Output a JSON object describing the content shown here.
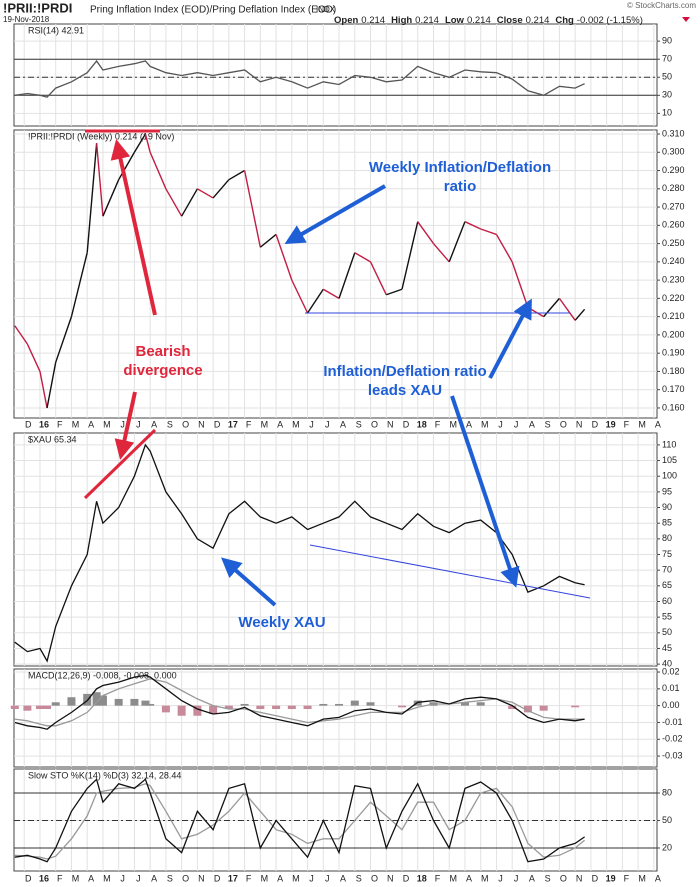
{
  "header": {
    "title": "!PRII:!PRDI",
    "subtitle": "Pring Inflation Index (EOD)/Pring Deflation Index (EOD)",
    "exchange": "INDX",
    "date": "19-Nov-2018",
    "credit": "© StockCharts.com",
    "quote": [
      {
        "label": "Open",
        "value": "0.214"
      },
      {
        "label": "High",
        "value": "0.214"
      },
      {
        "label": "Low",
        "value": "0.214"
      },
      {
        "label": "Close",
        "value": "0.214"
      },
      {
        "label": "Chg",
        "value": "-0.002 (-1.15%)"
      }
    ]
  },
  "time_axis": {
    "x": [
      -1.6,
      -0.8,
      0,
      0.45,
      1,
      2,
      3,
      3.6,
      4,
      5,
      6,
      6.7,
      7,
      8,
      9,
      10,
      11,
      12,
      13,
      14,
      15,
      16,
      17,
      18,
      19,
      20,
      21,
      22,
      23,
      24,
      25,
      26,
      27,
      28,
      29,
      30,
      31,
      32,
      33,
      34,
      34.6
    ],
    "xlim": [
      -1.65,
      39.2
    ],
    "xticks": [
      {
        "value": -1,
        "label": "D"
      },
      {
        "value": 0,
        "label": "16"
      },
      {
        "value": 1,
        "label": "F"
      },
      {
        "value": 2,
        "label": "M"
      },
      {
        "value": 3,
        "label": "A"
      },
      {
        "value": 4,
        "label": "M"
      },
      {
        "value": 5,
        "label": "J"
      },
      {
        "value": 6,
        "label": "J"
      },
      {
        "value": 7,
        "label": "A"
      },
      {
        "value": 8,
        "label": "S"
      },
      {
        "value": 9,
        "label": "O"
      },
      {
        "value": 10,
        "label": "N"
      },
      {
        "value": 11,
        "label": "D"
      },
      {
        "value": 12,
        "label": "17"
      },
      {
        "value": 13,
        "label": "F"
      },
      {
        "value": 14,
        "label": "M"
      },
      {
        "value": 15,
        "label": "A"
      },
      {
        "value": 16,
        "label": "M"
      },
      {
        "value": 17,
        "label": "J"
      },
      {
        "value": 18,
        "label": "J"
      },
      {
        "value": 19,
        "label": "A"
      },
      {
        "value": 20,
        "label": "S"
      },
      {
        "value": 21,
        "label": "O"
      },
      {
        "value": 22,
        "label": "N"
      },
      {
        "value": 23,
        "label": "D"
      },
      {
        "value": 24,
        "label": "18"
      },
      {
        "value": 25,
        "label": "F"
      },
      {
        "value": 26,
        "label": "M"
      },
      {
        "value": 27,
        "label": "A"
      },
      {
        "value": 28,
        "label": "M"
      },
      {
        "value": 29,
        "label": "J"
      },
      {
        "value": 30,
        "label": "J"
      },
      {
        "value": 31,
        "label": "A"
      },
      {
        "value": 32,
        "label": "S"
      },
      {
        "value": 33,
        "label": "O"
      },
      {
        "value": 34,
        "label": "N"
      },
      {
        "value": 35,
        "label": "D"
      },
      {
        "value": 36,
        "label": "19"
      },
      {
        "value": 37,
        "label": "F"
      },
      {
        "value": 38,
        "label": "M"
      },
      {
        "value": 39,
        "label": "A"
      }
    ]
  },
  "chart_data": [
    {
      "type": "line",
      "label": "RSI(14) 42.91",
      "ylim": [
        -4,
        109
      ],
      "yticks": [
        10,
        30,
        50,
        70,
        90
      ],
      "levels": [
        {
          "value": 70,
          "style": "solid"
        },
        {
          "value": 50,
          "style": "dashed"
        },
        {
          "value": 30,
          "style": "solid"
        }
      ],
      "series": [
        {
          "color": "#555555",
          "values": [
            30,
            32,
            30,
            28,
            38,
            45,
            55,
            68,
            58,
            62,
            65,
            68,
            62,
            55,
            52,
            55,
            52,
            55,
            58,
            45,
            50,
            45,
            38,
            45,
            42,
            52,
            50,
            45,
            47,
            62,
            55,
            50,
            58,
            56,
            55,
            48,
            35,
            30,
            40,
            38,
            42.91
          ]
        }
      ]
    },
    {
      "type": "line",
      "label": "!PRII:!PRDI (Weekly) 0.214 (19 Nov)",
      "ylim": [
        0.1545,
        0.3122
      ],
      "yticks": [
        {
          "value": 0.16,
          "label": "0.160"
        },
        {
          "value": 0.17,
          "label": "0.170"
        },
        {
          "value": 0.18,
          "label": "0.180"
        },
        {
          "value": 0.19,
          "label": "0.190"
        },
        {
          "value": 0.2,
          "label": "0.200"
        },
        {
          "value": 0.21,
          "label": "0.210"
        },
        {
          "value": 0.22,
          "label": "0.220"
        },
        {
          "value": 0.23,
          "label": "0.230"
        },
        {
          "value": 0.24,
          "label": "0.240"
        },
        {
          "value": 0.25,
          "label": "0.250"
        },
        {
          "value": 0.26,
          "label": "0.260"
        },
        {
          "value": 0.27,
          "label": "0.270"
        },
        {
          "value": 0.28,
          "label": "0.280"
        },
        {
          "value": 0.29,
          "label": "0.290"
        },
        {
          "value": 0.3,
          "label": "0.300"
        },
        {
          "value": 0.31,
          "label": "0.310"
        }
      ],
      "series": [
        {
          "up_color": "#111111",
          "down_color": "#c21d44",
          "values": [
            0.205,
            0.195,
            0.18,
            0.16,
            0.185,
            0.21,
            0.245,
            0.305,
            0.265,
            0.285,
            0.3,
            0.31,
            0.3,
            0.28,
            0.265,
            0.28,
            0.275,
            0.285,
            0.29,
            0.248,
            0.255,
            0.23,
            0.212,
            0.225,
            0.22,
            0.245,
            0.24,
            0.222,
            0.225,
            0.262,
            0.25,
            0.24,
            0.262,
            0.258,
            0.255,
            0.24,
            0.215,
            0.21,
            0.22,
            0.208,
            0.214
          ]
        }
      ]
    },
    {
      "type": "line",
      "label": "$XAU 65.34",
      "ylim": [
        39.4,
        113.8
      ],
      "yticks": [
        40,
        45,
        50,
        55,
        60,
        65,
        70,
        75,
        80,
        85,
        90,
        95,
        100,
        105,
        110
      ],
      "series": [
        {
          "color": "#111111",
          "values": [
            47,
            44,
            45,
            41,
            52,
            65,
            75,
            92,
            85,
            90,
            100,
            110,
            108,
            95,
            88,
            80,
            77,
            88,
            92,
            87,
            85,
            87,
            83,
            85,
            87,
            92,
            87,
            85,
            83,
            88,
            84,
            82,
            85,
            86,
            82,
            75,
            63,
            65,
            68,
            66,
            65.34
          ]
        }
      ]
    },
    {
      "type": "line",
      "label": "MACD(12,26,9) -0.008, -0.008, 0.000",
      "ylim": [
        -0.0365,
        0.0218
      ],
      "yticks": [
        -0.03,
        -0.02,
        -0.01,
        {
          "value": 0,
          "label": "0.00"
        },
        0.01,
        0.02
      ],
      "histogram": {
        "pos_color": "#8c8c8c",
        "neg_color": "#c8899a",
        "values": [
          -0.002,
          -0.003,
          -0.002,
          -0.002,
          0.002,
          0.005,
          0.007,
          0.008,
          0.006,
          0.004,
          0.004,
          0.003,
          0.001,
          -0.004,
          -0.006,
          -0.006,
          -0.005,
          -0.002,
          0.001,
          -0.002,
          -0.002,
          -0.002,
          -0.002,
          0.001,
          0.001,
          0.003,
          0.002,
          0,
          -0.001,
          0.003,
          0.002,
          0,
          0.002,
          0.002,
          0,
          -0.002,
          -0.004,
          -0.003,
          0,
          -0.001,
          0
        ]
      },
      "series": [
        {
          "color": "#999999",
          "values": [
            -0.008,
            -0.009,
            -0.011,
            -0.012,
            -0.012,
            -0.009,
            -0.004,
            0.002,
            0.006,
            0.01,
            0.013,
            0.015,
            0.016,
            0.014,
            0.009,
            0.004,
            0,
            -0.002,
            -0.002,
            -0.004,
            -0.006,
            -0.008,
            -0.01,
            -0.009,
            -0.008,
            -0.006,
            -0.004,
            -0.004,
            -0.004,
            -0.001,
            0.001,
            0.001,
            0.002,
            0.003,
            0.004,
            0.002,
            -0.003,
            -0.007,
            -0.008,
            -0.008,
            -0.008
          ]
        },
        {
          "color": "#111111",
          "values": [
            -0.01,
            -0.012,
            -0.013,
            -0.014,
            -0.01,
            -0.004,
            0.003,
            0.01,
            0.012,
            0.014,
            0.017,
            0.018,
            0.017,
            0.01,
            0.003,
            -0.002,
            -0.005,
            -0.004,
            -0.001,
            -0.006,
            -0.008,
            -0.01,
            -0.012,
            -0.008,
            -0.007,
            -0.003,
            -0.002,
            -0.004,
            -0.005,
            0.002,
            0.003,
            0.001,
            0.004,
            0.005,
            0.004,
            0,
            -0.007,
            -0.01,
            -0.008,
            -0.009,
            -0.008
          ]
        }
      ]
    },
    {
      "type": "line",
      "label": "Slow STO %K(14) %D(3) 32.14, 28.44",
      "ylim": [
        -5.1,
        106.2
      ],
      "yticks": [
        20,
        50,
        80
      ],
      "levels": [
        {
          "value": 80,
          "style": "solid"
        },
        {
          "value": 50,
          "style": "dashed"
        },
        {
          "value": 20,
          "style": "solid"
        }
      ],
      "series": [
        {
          "color": "#999999",
          "values": [
            12,
            11,
            10,
            8,
            11,
            30,
            55,
            80,
            82,
            85,
            86,
            90,
            88,
            60,
            30,
            35,
            45,
            60,
            80,
            60,
            40,
            35,
            25,
            30,
            30,
            50,
            70,
            55,
            40,
            70,
            70,
            40,
            50,
            80,
            85,
            65,
            25,
            10,
            12,
            20,
            28.44
          ]
        },
        {
          "color": "#111111",
          "values": [
            10,
            12,
            8,
            5,
            20,
            60,
            85,
            95,
            70,
            90,
            85,
            95,
            80,
            30,
            15,
            60,
            40,
            85,
            90,
            20,
            50,
            30,
            10,
            50,
            15,
            88,
            85,
            20,
            60,
            90,
            50,
            20,
            85,
            92,
            80,
            50,
            5,
            8,
            20,
            25,
            32.14
          ]
        }
      ]
    }
  ],
  "annotations": [
    "Weekly Inflation/Deflation",
    "ratio",
    "Bearish",
    "divergence",
    "Inflation/Deflation ratio",
    "leads XAU",
    "Weekly XAU"
  ]
}
